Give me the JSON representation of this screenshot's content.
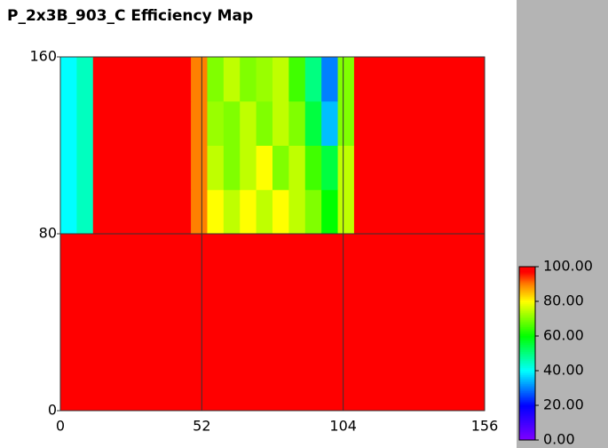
{
  "chart_data": {
    "type": "heatmap",
    "title": "P_2x3B_903_C Efficiency Map",
    "xbins": [
      0,
      6,
      12,
      18,
      24,
      30,
      36,
      42,
      48,
      54,
      60,
      66,
      72,
      78,
      84,
      90,
      96,
      102,
      108,
      114,
      120,
      126,
      132,
      138,
      144,
      150,
      156
    ],
    "ybins": [
      0,
      20,
      40,
      60,
      80,
      100,
      120,
      140,
      160
    ],
    "z": [
      [
        100,
        100,
        100,
        100,
        100,
        100,
        100,
        100,
        100,
        100,
        100,
        100,
        100,
        100,
        100,
        100,
        100,
        100,
        100,
        100,
        100,
        100,
        100,
        100,
        100,
        100
      ],
      [
        100,
        100,
        100,
        100,
        100,
        100,
        100,
        100,
        100,
        100,
        100,
        100,
        100,
        100,
        100,
        100,
        100,
        100,
        100,
        100,
        100,
        100,
        100,
        100,
        100,
        100
      ],
      [
        100,
        100,
        100,
        100,
        100,
        100,
        100,
        100,
        100,
        100,
        100,
        100,
        100,
        100,
        100,
        100,
        100,
        100,
        100,
        100,
        100,
        100,
        100,
        100,
        100,
        100
      ],
      [
        100,
        100,
        100,
        100,
        100,
        100,
        100,
        100,
        100,
        100,
        100,
        100,
        100,
        100,
        100,
        100,
        100,
        100,
        100,
        100,
        100,
        100,
        100,
        100,
        100,
        100
      ],
      [
        40,
        45,
        100,
        100,
        100,
        100,
        100,
        100,
        90,
        80,
        75,
        80,
        75,
        80,
        75,
        70,
        60,
        75,
        100,
        100,
        100,
        100,
        100,
        100,
        100,
        100
      ],
      [
        40,
        45,
        100,
        100,
        100,
        100,
        100,
        100,
        90,
        75,
        70,
        75,
        80,
        70,
        75,
        65,
        55,
        75,
        100,
        100,
        100,
        100,
        100,
        100,
        100,
        100
      ],
      [
        40,
        45,
        100,
        100,
        100,
        100,
        100,
        100,
        90,
        72,
        70,
        75,
        70,
        75,
        70,
        55,
        35,
        70,
        100,
        100,
        100,
        100,
        100,
        100,
        100,
        100
      ],
      [
        40,
        45,
        100,
        100,
        100,
        100,
        100,
        100,
        90,
        70,
        75,
        70,
        72,
        75,
        65,
        50,
        30,
        70,
        100,
        100,
        100,
        100,
        100,
        100,
        100,
        100
      ]
    ],
    "xlim": [
      0,
      156
    ],
    "ylim": [
      0,
      160
    ],
    "xticks": [
      0,
      52,
      104,
      156
    ],
    "yticks": [
      0,
      80,
      160
    ],
    "grid": true,
    "zlim": [
      0,
      100
    ],
    "colorbar_ticks": [
      {
        "value": 0,
        "label": "0.00"
      },
      {
        "value": 20,
        "label": "20.00"
      },
      {
        "value": 40,
        "label": "40.00"
      },
      {
        "value": 60,
        "label": "60.00"
      },
      {
        "value": 80,
        "label": "80.00"
      },
      {
        "value": 100,
        "label": "100.00"
      }
    ],
    "colorscale": [
      [
        0,
        "#8000ff"
      ],
      [
        20,
        "#0000ff"
      ],
      [
        40,
        "#00ffff"
      ],
      [
        60,
        "#00ff00"
      ],
      [
        80,
        "#ffff00"
      ],
      [
        90,
        "#ff8000"
      ],
      [
        97,
        "#ff0000"
      ],
      [
        100,
        "#ff0000"
      ]
    ]
  }
}
